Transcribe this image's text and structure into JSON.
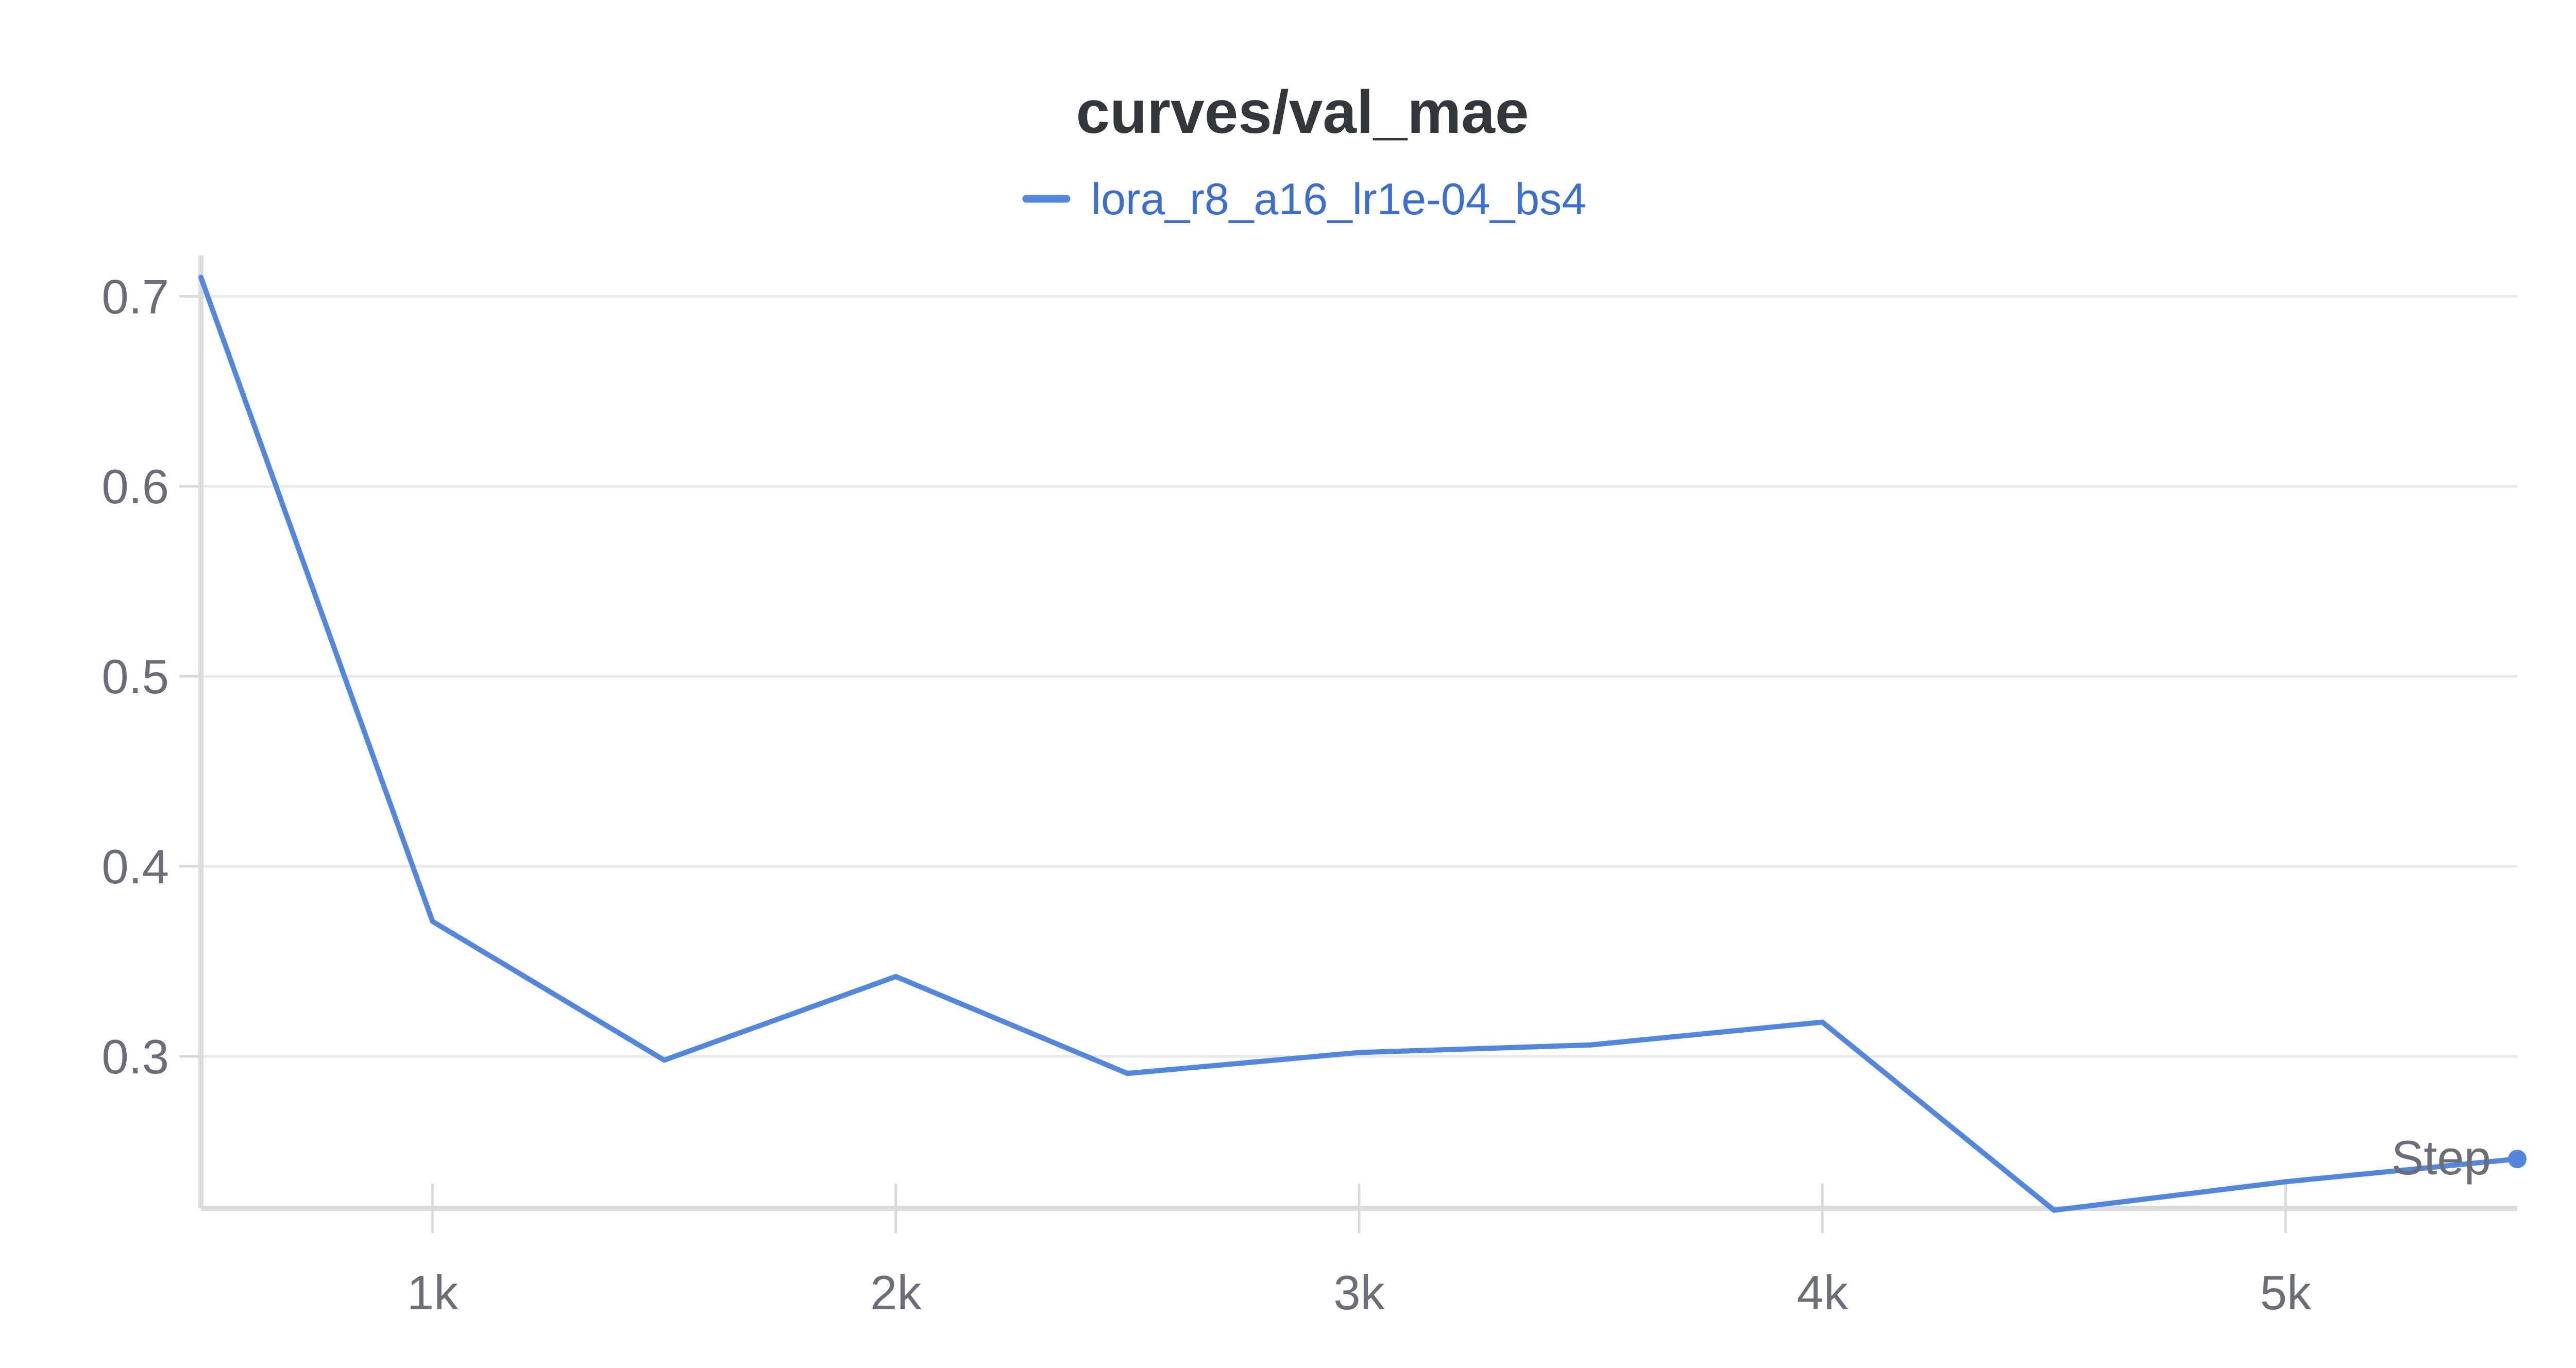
{
  "chart_data": {
    "type": "line",
    "title": "curves/val_mae",
    "xlabel": "Step",
    "ylabel": "",
    "xlim": [
      500,
      5500
    ],
    "ylim": [
      0.22,
      0.715
    ],
    "x_ticks": [
      {
        "value": 1000,
        "label": "1k"
      },
      {
        "value": 2000,
        "label": "2k"
      },
      {
        "value": 3000,
        "label": "3k"
      },
      {
        "value": 4000,
        "label": "4k"
      },
      {
        "value": 5000,
        "label": "5k"
      }
    ],
    "y_ticks": [
      {
        "value": 0.3,
        "label": "0.3"
      },
      {
        "value": 0.4,
        "label": "0.4"
      },
      {
        "value": 0.5,
        "label": "0.5"
      },
      {
        "value": 0.6,
        "label": "0.6"
      },
      {
        "value": 0.7,
        "label": "0.7"
      }
    ],
    "grid": true,
    "legend": "top-center",
    "series": [
      {
        "name": "lora_r8_a16_lr1e-04_bs4",
        "color": "#5387dd",
        "x": [
          500,
          1000,
          1500,
          2000,
          2500,
          3000,
          3500,
          4000,
          4500,
          5000,
          5500
        ],
        "y": [
          0.71,
          0.371,
          0.298,
          0.342,
          0.291,
          0.302,
          0.306,
          0.318,
          0.219,
          0.234,
          0.246
        ]
      }
    ]
  }
}
